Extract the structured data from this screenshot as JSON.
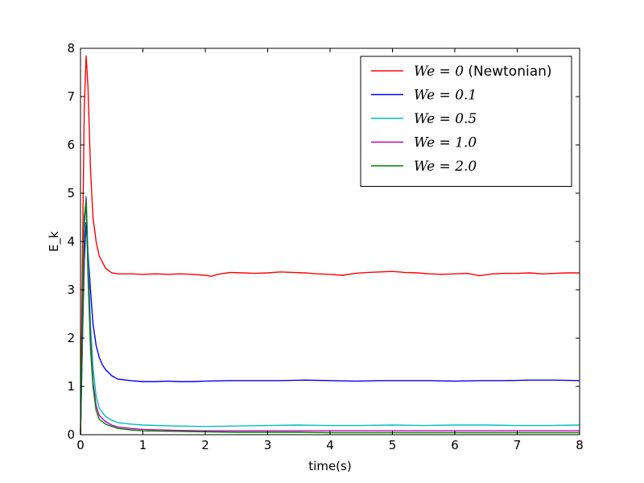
{
  "chart_data": {
    "type": "line",
    "title": "",
    "xlabel": "time(s)",
    "ylabel": "E_k",
    "xlim": [
      0,
      8
    ],
    "ylim": [
      0,
      8
    ],
    "xticks": [
      "0",
      "1",
      "2",
      "3",
      "4",
      "5",
      "6",
      "7",
      "8"
    ],
    "yticks": [
      "0",
      "1",
      "2",
      "3",
      "4",
      "5",
      "6",
      "7",
      "8"
    ],
    "grid": false,
    "legend_position": "top-right",
    "series": [
      {
        "name": "We=0 (Newtonian)",
        "color": "#ff0000",
        "x": [
          0,
          0.03,
          0.06,
          0.09,
          0.12,
          0.16,
          0.2,
          0.25,
          0.3,
          0.4,
          0.5,
          0.6,
          0.8,
          1.0,
          1.2,
          1.4,
          1.6,
          1.8,
          2.0,
          2.1,
          2.2,
          2.4,
          2.6,
          2.8,
          3.0,
          3.2,
          3.4,
          3.6,
          3.8,
          4.0,
          4.2,
          4.4,
          4.6,
          4.8,
          5.0,
          5.2,
          5.4,
          5.6,
          5.8,
          6.0,
          6.2,
          6.4,
          6.6,
          6.8,
          7.0,
          7.2,
          7.4,
          7.6,
          7.8,
          8.0
        ],
        "y": [
          0,
          3.5,
          6.8,
          7.85,
          7.2,
          5.5,
          4.5,
          4.0,
          3.7,
          3.45,
          3.35,
          3.33,
          3.33,
          3.32,
          3.33,
          3.32,
          3.33,
          3.32,
          3.3,
          3.28,
          3.32,
          3.36,
          3.35,
          3.34,
          3.35,
          3.37,
          3.36,
          3.35,
          3.33,
          3.32,
          3.3,
          3.34,
          3.36,
          3.37,
          3.38,
          3.36,
          3.35,
          3.33,
          3.32,
          3.33,
          3.34,
          3.29,
          3.33,
          3.34,
          3.34,
          3.35,
          3.33,
          3.34,
          3.35,
          3.35
        ]
      },
      {
        "name": "We=0.1",
        "color": "#0000ff",
        "x": [
          0,
          0.03,
          0.06,
          0.09,
          0.12,
          0.16,
          0.2,
          0.25,
          0.3,
          0.35,
          0.4,
          0.5,
          0.6,
          0.8,
          1.0,
          1.2,
          1.4,
          1.6,
          1.8,
          2.0,
          2.4,
          2.8,
          3.2,
          3.6,
          4.0,
          4.4,
          4.8,
          5.2,
          5.6,
          6.0,
          6.4,
          6.8,
          7.2,
          7.6,
          8.0
        ],
        "y": [
          0,
          1.8,
          3.6,
          4.4,
          3.8,
          3.0,
          2.3,
          1.85,
          1.6,
          1.45,
          1.35,
          1.22,
          1.15,
          1.12,
          1.1,
          1.1,
          1.11,
          1.1,
          1.1,
          1.11,
          1.12,
          1.12,
          1.12,
          1.13,
          1.12,
          1.11,
          1.12,
          1.12,
          1.12,
          1.11,
          1.12,
          1.12,
          1.13,
          1.13,
          1.12
        ]
      },
      {
        "name": "We=0.5",
        "color": "#00bfbf",
        "x": [
          0,
          0.03,
          0.06,
          0.09,
          0.12,
          0.16,
          0.2,
          0.25,
          0.3,
          0.4,
          0.5,
          0.6,
          0.8,
          1.0,
          1.5,
          2.0,
          2.5,
          3.0,
          3.5,
          4.0,
          4.5,
          5.0,
          5.5,
          6.0,
          6.5,
          7.0,
          7.5,
          8.0
        ],
        "y": [
          0,
          2.0,
          4.2,
          4.95,
          3.8,
          2.3,
          1.4,
          0.8,
          0.55,
          0.38,
          0.3,
          0.25,
          0.22,
          0.2,
          0.18,
          0.17,
          0.18,
          0.19,
          0.2,
          0.19,
          0.19,
          0.2,
          0.19,
          0.2,
          0.2,
          0.19,
          0.19,
          0.2
        ]
      },
      {
        "name": "We=1.0",
        "color": "#bf00bf",
        "x": [
          0,
          0.03,
          0.06,
          0.09,
          0.12,
          0.16,
          0.2,
          0.25,
          0.3,
          0.4,
          0.5,
          0.6,
          0.8,
          1.0,
          1.5,
          2.0,
          2.5,
          3.0,
          3.5,
          4.0,
          4.5,
          5.0,
          5.5,
          6.0,
          6.5,
          7.0,
          7.5,
          8.0
        ],
        "y": [
          0,
          2.2,
          4.4,
          4.9,
          3.5,
          2.0,
          1.1,
          0.6,
          0.4,
          0.27,
          0.2,
          0.16,
          0.13,
          0.11,
          0.09,
          0.08,
          0.08,
          0.08,
          0.08,
          0.08,
          0.08,
          0.08,
          0.08,
          0.08,
          0.08,
          0.08,
          0.08,
          0.08
        ]
      },
      {
        "name": "We=2.0",
        "color": "#008000",
        "x": [
          0,
          0.03,
          0.06,
          0.09,
          0.12,
          0.16,
          0.2,
          0.25,
          0.3,
          0.4,
          0.5,
          0.6,
          0.8,
          1.0,
          1.5,
          2.0,
          2.5,
          3.0,
          3.5,
          4.0,
          4.5,
          5.0,
          5.5,
          6.0,
          6.5,
          7.0,
          7.5,
          8.0
        ],
        "y": [
          0,
          2.3,
          4.5,
          4.85,
          3.3,
          1.8,
          1.0,
          0.5,
          0.32,
          0.22,
          0.17,
          0.13,
          0.1,
          0.08,
          0.07,
          0.06,
          0.05,
          0.05,
          0.05,
          0.04,
          0.04,
          0.04,
          0.04,
          0.04,
          0.04,
          0.04,
          0.04,
          0.04
        ]
      }
    ],
    "legend": [
      {
        "main": "We = 0",
        "suffix": " (Newtonian)"
      },
      {
        "main": "We = 0.1",
        "suffix": ""
      },
      {
        "main": "We = 0.5",
        "suffix": ""
      },
      {
        "main": "We = 1.0",
        "suffix": ""
      },
      {
        "main": "We = 2.0",
        "suffix": ""
      }
    ]
  }
}
